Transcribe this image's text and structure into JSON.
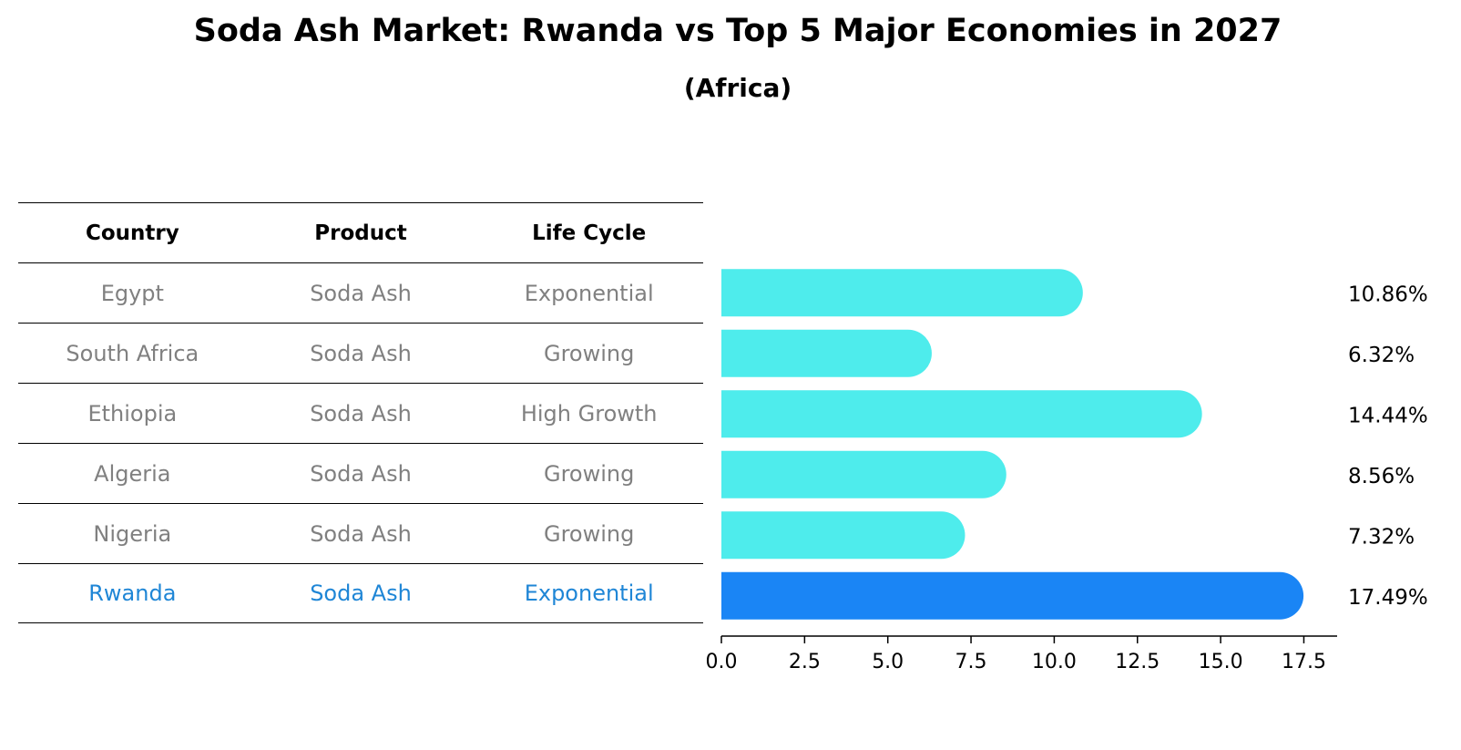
{
  "chart_data": {
    "type": "bar",
    "orientation": "horizontal",
    "title": "Soda Ash Market: Rwanda vs Top 5 Major Economies in 2027",
    "subtitle": "(Africa)",
    "categories": [
      "Egypt",
      "South Africa",
      "Ethiopia",
      "Algeria",
      "Nigeria",
      "Rwanda"
    ],
    "values": [
      10.86,
      6.32,
      14.44,
      8.56,
      7.32,
      17.49
    ],
    "value_labels": [
      "10.86%",
      "6.32%",
      "14.44%",
      "8.56%",
      "7.32%",
      "17.49%"
    ],
    "highlight": "Rwanda",
    "xlim": [
      0,
      18.5
    ],
    "xticks": [
      0.0,
      2.5,
      5.0,
      7.5,
      10.0,
      12.5,
      15.0,
      17.5
    ],
    "xtick_labels": [
      "0.0",
      "2.5",
      "5.0",
      "7.5",
      "10.0",
      "12.5",
      "15.0",
      "17.5"
    ],
    "colors": {
      "bar": "#4eecec",
      "highlight": "#1a85f5",
      "highlight_text": "#1f86d6",
      "text_muted": "#808080"
    },
    "table": {
      "columns": [
        "Country",
        "Product",
        "Life Cycle"
      ],
      "rows": [
        [
          "Egypt",
          "Soda Ash",
          "Exponential"
        ],
        [
          "South Africa",
          "Soda Ash",
          "Growing"
        ],
        [
          "Ethiopia",
          "Soda Ash",
          "High Growth"
        ],
        [
          "Algeria",
          "Soda Ash",
          "Growing"
        ],
        [
          "Nigeria",
          "Soda Ash",
          "Growing"
        ],
        [
          "Rwanda",
          "Soda Ash",
          "Exponential"
        ]
      ]
    }
  }
}
